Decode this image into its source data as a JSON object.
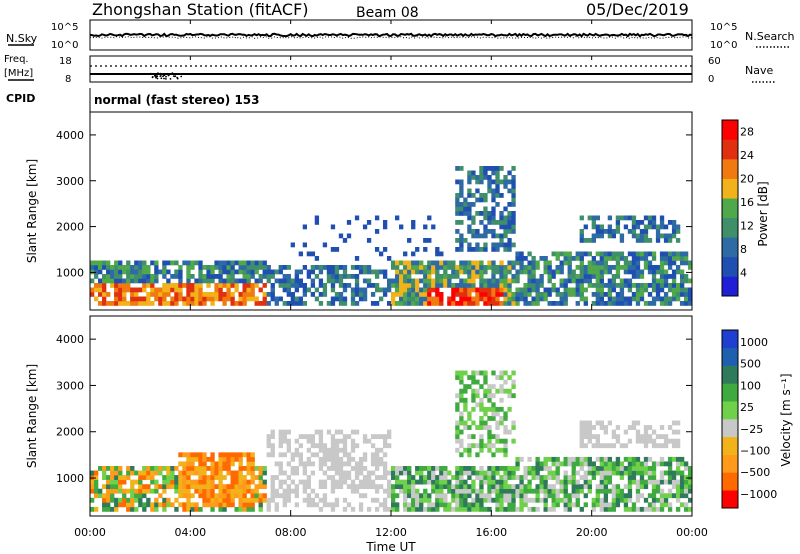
{
  "header": {
    "station": "Zhongshan Station (fitACF)",
    "beam": "Beam 08",
    "date": "05/Dec/2019",
    "cpid_label": "CPID",
    "cpid_value": "normal (fast stereo) 153"
  },
  "top_panel": {
    "left_label": "N.Sky",
    "right_label": "N.Search",
    "ticks_left": [
      "10^5",
      "10^0"
    ],
    "ticks_right": [
      "10^5",
      "10^0"
    ]
  },
  "freq_panel": {
    "left_label_1": "Freq.",
    "left_label_2": "[MHz]",
    "right_label": "Nave",
    "ticks_left": [
      "18",
      "8"
    ],
    "ticks_right": [
      "60",
      "0"
    ]
  },
  "colors": {
    "power_scale": [
      "#1f1fd6",
      "#1f4fb0",
      "#2e6aa3",
      "#3f8f6a",
      "#4fa84a",
      "#f2b21a",
      "#f07a10",
      "#e03010",
      "#ff0000"
    ],
    "velocity_scale": [
      "#ff0000",
      "#ff6a00",
      "#ff9a1a",
      "#f2b21a",
      "#c8c8c8",
      "#6fd04a",
      "#3faa3f",
      "#2e7a5a",
      "#1f5fb0",
      "#1f3fd0"
    ]
  },
  "x_axis": {
    "ticks": [
      "00:00",
      "04:00",
      "08:00",
      "12:00",
      "16:00",
      "20:00",
      "00:00"
    ],
    "label": "Time UT"
  },
  "chart_data": [
    {
      "type": "heatmap",
      "title": "",
      "xlabel": "Time UT",
      "ylabel": "Slant Range [km]",
      "x_range_hours": [
        0,
        24
      ],
      "y_range_km": [
        180,
        4500
      ],
      "yticks": [
        "1000",
        "2000",
        "3000",
        "4000"
      ],
      "colorbar": {
        "label": "Power [dB]",
        "ticks": [
          "4",
          "8",
          "12",
          "16",
          "20",
          "24",
          "28"
        ],
        "range": [
          0,
          30
        ]
      },
      "regions": [
        {
          "t": [
            0.0,
            7.0
          ],
          "r": [
            300,
            1300
          ],
          "level": "mixed-high"
        },
        {
          "t": [
            0.0,
            7.0
          ],
          "r": [
            350,
            700
          ],
          "level": "high"
        },
        {
          "t": [
            7.0,
            12.0
          ],
          "r": [
            300,
            1200
          ],
          "level": "low-mid"
        },
        {
          "t": [
            12.0,
            17.0
          ],
          "r": [
            300,
            1300
          ],
          "level": "mixed-high"
        },
        {
          "t": [
            13.5,
            16.5
          ],
          "r": [
            350,
            650
          ],
          "level": "very-high"
        },
        {
          "t": [
            14.5,
            17.0
          ],
          "r": [
            1500,
            3300
          ],
          "level": "low"
        },
        {
          "t": [
            17.0,
            24.0
          ],
          "r": [
            300,
            1500
          ],
          "level": "low-mid"
        },
        {
          "t": [
            19.5,
            23.5
          ],
          "r": [
            1700,
            2200
          ],
          "level": "low"
        }
      ]
    },
    {
      "type": "heatmap",
      "title": "",
      "xlabel": "Time UT",
      "ylabel": "Slant Range [km]",
      "x_range_hours": [
        0,
        24
      ],
      "y_range_km": [
        180,
        4500
      ],
      "yticks": [
        "1000",
        "2000",
        "3000",
        "4000"
      ],
      "colorbar": {
        "label": "Velocity [m s⁻¹]",
        "ticks": [
          "1000",
          "500",
          "100",
          "25",
          "−25",
          "−100",
          "−500",
          "−1000"
        ],
        "range": [
          -1000,
          1000
        ]
      },
      "regions": [
        {
          "t": [
            0.0,
            7.0
          ],
          "r": [
            300,
            1300
          ],
          "level": "orange-green"
        },
        {
          "t": [
            3.5,
            6.5
          ],
          "r": [
            400,
            1600
          ],
          "level": "orange"
        },
        {
          "t": [
            7.0,
            12.0
          ],
          "r": [
            300,
            2000
          ],
          "level": "grey"
        },
        {
          "t": [
            12.0,
            17.0
          ],
          "r": [
            300,
            1300
          ],
          "level": "green-grey"
        },
        {
          "t": [
            14.5,
            17.0
          ],
          "r": [
            1500,
            3300
          ],
          "level": "green"
        },
        {
          "t": [
            17.0,
            24.0
          ],
          "r": [
            300,
            1500
          ],
          "level": "green-grey"
        },
        {
          "t": [
            19.5,
            23.5
          ],
          "r": [
            1700,
            2200
          ],
          "level": "grey"
        }
      ]
    }
  ]
}
